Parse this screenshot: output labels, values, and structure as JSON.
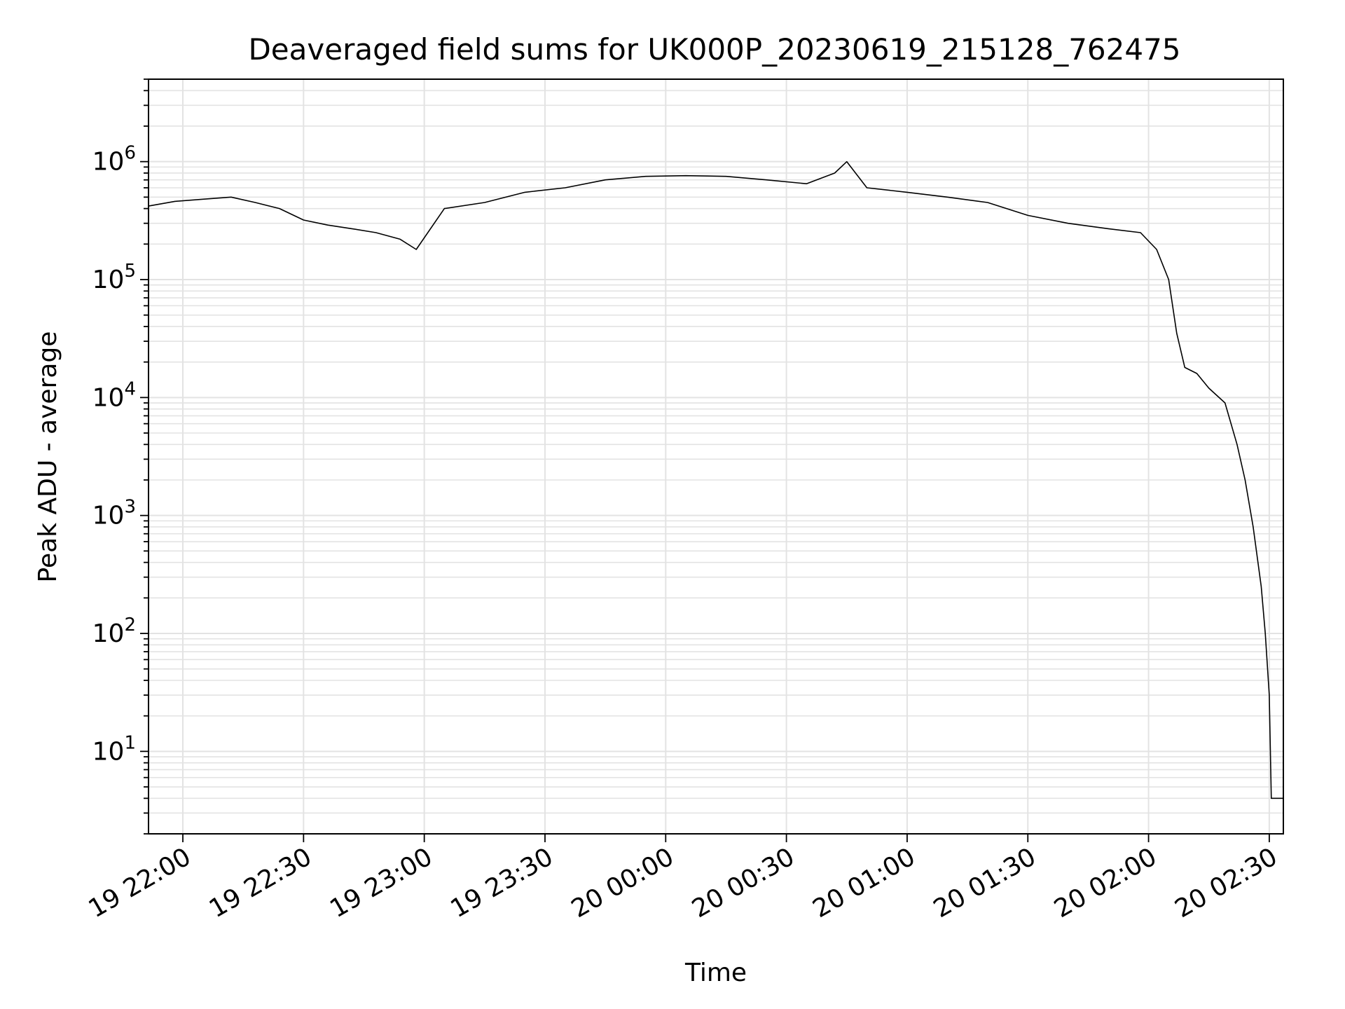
{
  "chart_data": {
    "type": "line",
    "title": "Deaveraged field sums for UK000P_20230619_215128_762475",
    "xlabel": "Time",
    "ylabel": "Peak ADU - average",
    "y_scale": "log",
    "ylim": [
      2,
      5000000
    ],
    "xlim": [
      "2023-06-19 21:51:28",
      "2023-06-20 02:33:30"
    ],
    "grid": true,
    "x_ticks": [
      {
        "label": "19 22:00",
        "t": "2023-06-19 22:00"
      },
      {
        "label": "19 22:30",
        "t": "2023-06-19 22:30"
      },
      {
        "label": "19 23:00",
        "t": "2023-06-19 23:00"
      },
      {
        "label": "19 23:30",
        "t": "2023-06-19 23:30"
      },
      {
        "label": "20 00:00",
        "t": "2023-06-20 00:00"
      },
      {
        "label": "20 00:30",
        "t": "2023-06-20 00:30"
      },
      {
        "label": "20 01:00",
        "t": "2023-06-20 01:00"
      },
      {
        "label": "20 01:30",
        "t": "2023-06-20 01:30"
      },
      {
        "label": "20 02:00",
        "t": "2023-06-20 02:00"
      },
      {
        "label": "20 02:30",
        "t": "2023-06-20 02:30"
      }
    ],
    "y_ticks": [
      {
        "base": "10",
        "exp": "1",
        "value": 10
      },
      {
        "base": "10",
        "exp": "2",
        "value": 100
      },
      {
        "base": "10",
        "exp": "3",
        "value": 1000
      },
      {
        "base": "10",
        "exp": "4",
        "value": 10000
      },
      {
        "base": "10",
        "exp": "5",
        "value": 100000
      },
      {
        "base": "10",
        "exp": "6",
        "value": 1000000
      }
    ],
    "series": [
      {
        "color": "#000000",
        "points": [
          [
            "2023-06-19 21:51:28",
            420000
          ],
          [
            "2023-06-19 21:58",
            460000
          ],
          [
            "2023-06-19 22:05",
            480000
          ],
          [
            "2023-06-19 22:12",
            500000
          ],
          [
            "2023-06-19 22:18",
            450000
          ],
          [
            "2023-06-19 22:24",
            400000
          ],
          [
            "2023-06-19 22:30",
            320000
          ],
          [
            "2023-06-19 22:36",
            290000
          ],
          [
            "2023-06-19 22:42",
            270000
          ],
          [
            "2023-06-19 22:48",
            250000
          ],
          [
            "2023-06-19 22:54",
            220000
          ],
          [
            "2023-06-19 22:58",
            180000
          ],
          [
            "2023-06-19 23:05",
            400000
          ],
          [
            "2023-06-19 23:15",
            450000
          ],
          [
            "2023-06-19 23:25",
            550000
          ],
          [
            "2023-06-19 23:35",
            600000
          ],
          [
            "2023-06-19 23:45",
            700000
          ],
          [
            "2023-06-19 23:55",
            750000
          ],
          [
            "2023-06-20 00:05",
            760000
          ],
          [
            "2023-06-20 00:15",
            750000
          ],
          [
            "2023-06-20 00:25",
            700000
          ],
          [
            "2023-06-20 00:35",
            650000
          ],
          [
            "2023-06-20 00:42",
            800000
          ],
          [
            "2023-06-20 00:45",
            1000000
          ],
          [
            "2023-06-20 00:50",
            600000
          ],
          [
            "2023-06-20 01:00",
            550000
          ],
          [
            "2023-06-20 01:10",
            500000
          ],
          [
            "2023-06-20 01:20",
            450000
          ],
          [
            "2023-06-20 01:30",
            350000
          ],
          [
            "2023-06-20 01:40",
            300000
          ],
          [
            "2023-06-20 01:50",
            270000
          ],
          [
            "2023-06-20 01:58",
            250000
          ],
          [
            "2023-06-20 02:02",
            180000
          ],
          [
            "2023-06-20 02:05",
            100000
          ],
          [
            "2023-06-20 02:07",
            35000
          ],
          [
            "2023-06-20 02:09",
            18000
          ],
          [
            "2023-06-20 02:12",
            16000
          ],
          [
            "2023-06-20 02:15",
            12000
          ],
          [
            "2023-06-20 02:19",
            9000
          ],
          [
            "2023-06-20 02:22",
            4000
          ],
          [
            "2023-06-20 02:24",
            2000
          ],
          [
            "2023-06-20 02:26",
            800
          ],
          [
            "2023-06-20 02:28",
            250
          ],
          [
            "2023-06-20 02:29",
            100
          ],
          [
            "2023-06-20 02:30",
            30
          ],
          [
            "2023-06-20 02:30:30",
            4
          ],
          [
            "2023-06-20 02:33:30",
            4
          ]
        ]
      }
    ]
  }
}
